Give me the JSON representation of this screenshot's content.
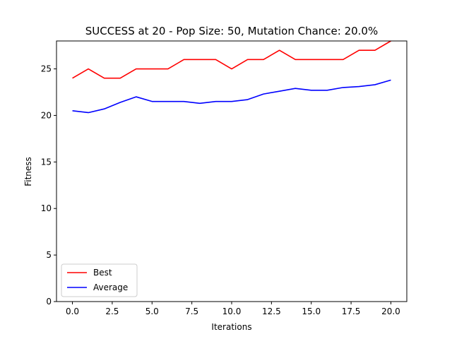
{
  "chart_data": {
    "type": "line",
    "title": "SUCCESS at 20 - Pop Size: 50, Mutation Chance: 20.0%",
    "xlabel": "Iterations",
    "ylabel": "Fitness",
    "xlim": [
      -1,
      21
    ],
    "ylim": [
      0,
      28
    ],
    "xticks": [
      0,
      2.5,
      5,
      7.5,
      10,
      12.5,
      15,
      17.5,
      20
    ],
    "xtick_labels": [
      "0.0",
      "2.5",
      "5.0",
      "7.5",
      "10.0",
      "12.5",
      "15.0",
      "17.5",
      "20.0"
    ],
    "yticks": [
      0,
      5,
      10,
      15,
      20,
      25
    ],
    "ytick_labels": [
      "0",
      "5",
      "10",
      "15",
      "20",
      "25"
    ],
    "grid": false,
    "legend_position": "bottom-left",
    "x": [
      0,
      1,
      2,
      3,
      4,
      5,
      6,
      7,
      8,
      9,
      10,
      11,
      12,
      13,
      14,
      15,
      16,
      17,
      18,
      19,
      20
    ],
    "series": [
      {
        "name": "Best",
        "color": "#ff0000",
        "values": [
          24,
          25,
          24,
          24,
          25,
          25,
          25,
          26,
          26,
          26,
          25,
          26,
          26,
          27,
          26,
          26,
          26,
          26,
          27,
          27,
          28
        ]
      },
      {
        "name": "Average",
        "color": "#0000ff",
        "values": [
          20.5,
          20.3,
          20.7,
          21.4,
          22.0,
          21.5,
          21.5,
          21.5,
          21.3,
          21.5,
          21.5,
          21.7,
          22.3,
          22.6,
          22.9,
          22.7,
          22.7,
          23.0,
          23.1,
          23.3,
          23.8
        ]
      }
    ]
  }
}
